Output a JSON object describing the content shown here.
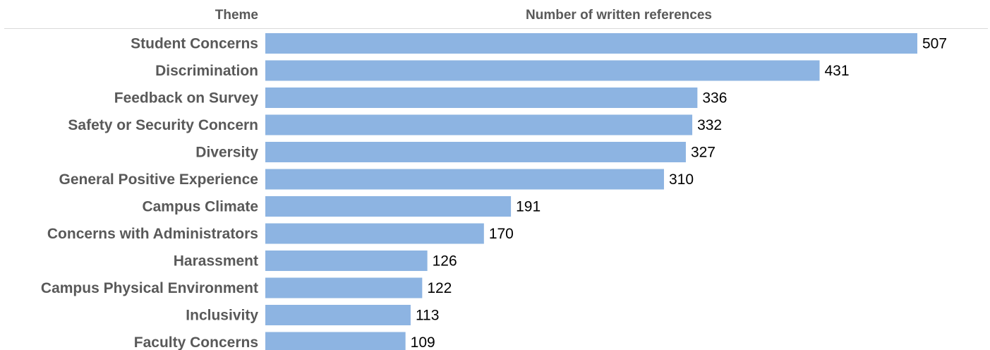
{
  "header": {
    "theme_label": "Theme",
    "value_label": "Number of written references"
  },
  "chart_data": {
    "type": "bar",
    "orientation": "horizontal",
    "categories": [
      "Student Concerns",
      "Discrimination",
      "Feedback on Survey",
      "Safety or Security Concern",
      "Diversity",
      "General Positive Experience",
      "Campus Climate",
      "Concerns with Administrators",
      "Harassment",
      "Campus Physical Environment",
      "Inclusivity",
      "Faculty Concerns"
    ],
    "values": [
      507,
      431,
      336,
      332,
      327,
      310,
      191,
      170,
      126,
      122,
      113,
      109
    ],
    "xlim": [
      0,
      507
    ],
    "bar_color": "#8db4e2",
    "grid": false,
    "legend": "none",
    "data_labels": true
  }
}
